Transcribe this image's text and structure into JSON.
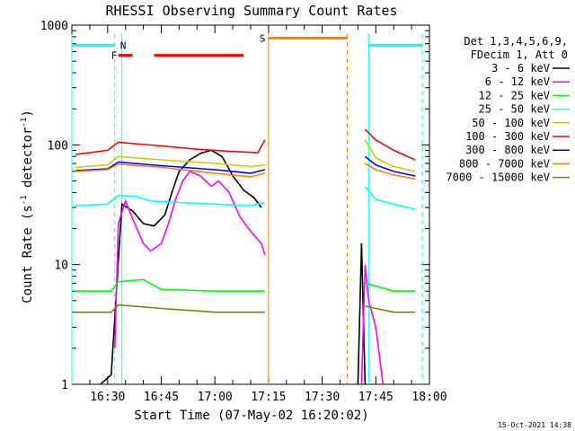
{
  "chart_data": {
    "type": "line",
    "title": "RHESSI Observing Summary Count Rates",
    "xlabel": "Start Time (07-May-02 16:20:02)",
    "ylabel_main": "Count Rate (s",
    "ylabel_sup1": "-1",
    "ylabel_mid": " detector",
    "ylabel_sup2": "-1",
    "ylabel_end": ")",
    "y_scale": "log",
    "xlim": [
      "16:20",
      "18:00"
    ],
    "ylim": [
      1,
      1000
    ],
    "x_ticks": [
      "16:30",
      "16:45",
      "17:00",
      "17:15",
      "17:30",
      "17:45",
      "18:00"
    ],
    "y_ticks": [
      "1",
      "10",
      "100",
      "1000"
    ],
    "legend_header": [
      "Det 1,3,4,5,6,9,",
      "FDecim 1, Att 0"
    ],
    "legend_position": "right",
    "series": [
      {
        "name": "3 - 6 keV",
        "color": "#000000",
        "points": [
          [
            "16:28",
            1
          ],
          [
            "16:31",
            1.2
          ],
          [
            "16:34",
            32
          ],
          [
            "16:37",
            28
          ],
          [
            "16:40",
            22
          ],
          [
            "16:43",
            21
          ],
          [
            "16:46",
            26
          ],
          [
            "16:48",
            40
          ],
          [
            "16:50",
            60
          ],
          [
            "16:53",
            75
          ],
          [
            "16:56",
            85
          ],
          [
            "16:59",
            90
          ],
          [
            "17:02",
            80
          ],
          [
            "17:05",
            55
          ],
          [
            "17:08",
            42
          ],
          [
            "17:11",
            36
          ],
          [
            "17:13",
            30
          ]
        ]
      },
      {
        "name": "6 - 12 keV",
        "color": "#ff00ff",
        "points": [
          [
            "16:32",
            2
          ],
          [
            "16:33",
            22
          ],
          [
            "16:35",
            34
          ],
          [
            "16:37",
            24
          ],
          [
            "16:40",
            15
          ],
          [
            "16:42",
            13
          ],
          [
            "16:45",
            15
          ],
          [
            "16:47",
            22
          ],
          [
            "16:49",
            35
          ],
          [
            "16:51",
            50
          ],
          [
            "16:53",
            60
          ],
          [
            "16:56",
            55
          ],
          [
            "16:59",
            45
          ],
          [
            "17:01",
            50
          ],
          [
            "17:04",
            40
          ],
          [
            "17:07",
            25
          ],
          [
            "17:10",
            19
          ],
          [
            "17:13",
            15
          ],
          [
            "17:14",
            12
          ]
        ]
      },
      {
        "name": "12 - 25 keV",
        "color": "#00ff00",
        "points": [
          [
            "16:21",
            6
          ],
          [
            "16:31",
            6
          ],
          [
            "16:33",
            7.2
          ],
          [
            "16:40",
            7.5
          ],
          [
            "16:45",
            6.2
          ],
          [
            "17:00",
            6
          ],
          [
            "17:14",
            6
          ]
        ]
      },
      {
        "name": "25 - 50 keV",
        "color": "#00ffff",
        "points": [
          [
            "16:21",
            31
          ],
          [
            "16:30",
            32
          ],
          [
            "16:33",
            38
          ],
          [
            "16:38",
            37
          ],
          [
            "16:42",
            34
          ],
          [
            "16:50",
            33
          ],
          [
            "17:00",
            32
          ],
          [
            "17:10",
            31
          ],
          [
            "17:14",
            33
          ]
        ]
      },
      {
        "name": "50 - 100 keV",
        "color": "#cccc00",
        "points": [
          [
            "16:21",
            65
          ],
          [
            "16:30",
            68
          ],
          [
            "16:33",
            80
          ],
          [
            "16:45",
            75
          ],
          [
            "17:00",
            70
          ],
          [
            "17:10",
            66
          ],
          [
            "17:14",
            68
          ]
        ]
      },
      {
        "name": "100 - 300 keV",
        "color": "#ff0000",
        "points": [
          [
            "16:21",
            83
          ],
          [
            "16:30",
            90
          ],
          [
            "16:33",
            105
          ],
          [
            "16:45",
            98
          ],
          [
            "16:55",
            92
          ],
          [
            "17:05",
            88
          ],
          [
            "17:12",
            86
          ],
          [
            "17:14",
            110
          ]
        ]
      },
      {
        "name": "300 - 800 keV",
        "color": "#0000ff",
        "points": [
          [
            "16:21",
            61
          ],
          [
            "16:30",
            63
          ],
          [
            "16:33",
            72
          ],
          [
            "16:45",
            67
          ],
          [
            "17:00",
            62
          ],
          [
            "17:10",
            58
          ],
          [
            "17:14",
            62
          ]
        ]
      },
      {
        "name": "800 - 7000 keV",
        "color": "#ff8000",
        "points": [
          [
            "16:21",
            60
          ],
          [
            "16:30",
            62
          ],
          [
            "16:33",
            69
          ],
          [
            "16:45",
            65
          ],
          [
            "17:00",
            58
          ],
          [
            "17:10",
            54
          ],
          [
            "17:14",
            58
          ]
        ]
      },
      {
        "name": "7000 - 15000 keV",
        "color": "#808000",
        "points": [
          [
            "16:21",
            4
          ],
          [
            "16:31",
            4
          ],
          [
            "16:33",
            4.6
          ],
          [
            "16:45",
            4.3
          ],
          [
            "17:00",
            4
          ],
          [
            "17:14",
            4
          ]
        ]
      }
    ],
    "post_gap_series": [
      {
        "name": "3 - 6 keV",
        "color": "#000000",
        "points": [
          [
            "17:40",
            1
          ],
          [
            "17:41",
            15
          ],
          [
            "17:42",
            1
          ]
        ]
      },
      {
        "name": "6 - 12 keV",
        "color": "#ff00ff",
        "points": [
          [
            "17:41",
            1
          ],
          [
            "17:42",
            10
          ],
          [
            "17:43",
            5
          ],
          [
            "17:45",
            3
          ],
          [
            "17:47",
            1
          ]
        ]
      },
      {
        "name": "12 - 25 keV",
        "color": "#00ff00",
        "points": [
          [
            "17:42",
            7
          ],
          [
            "17:50",
            6
          ],
          [
            "17:56",
            6
          ]
        ]
      },
      {
        "name": "25 - 50 keV",
        "color": "#00ffff",
        "points": [
          [
            "17:42",
            45
          ],
          [
            "17:45",
            35
          ],
          [
            "17:50",
            32
          ],
          [
            "17:56",
            29
          ]
        ]
      },
      {
        "name": "50 - 100 keV",
        "color": "#cccc00",
        "points": [
          [
            "17:42",
            110
          ],
          [
            "17:45",
            78
          ],
          [
            "17:50",
            66
          ],
          [
            "17:56",
            60
          ]
        ]
      },
      {
        "name": "100 - 300 keV",
        "color": "#ff0000",
        "points": [
          [
            "17:42",
            135
          ],
          [
            "17:45",
            110
          ],
          [
            "17:50",
            90
          ],
          [
            "17:56",
            75
          ]
        ]
      },
      {
        "name": "300 - 800 keV",
        "color": "#0000ff",
        "points": [
          [
            "17:42",
            80
          ],
          [
            "17:45",
            68
          ],
          [
            "17:50",
            60
          ],
          [
            "17:56",
            55
          ]
        ]
      },
      {
        "name": "800 - 7000 keV",
        "color": "#ff8000",
        "points": [
          [
            "17:42",
            70
          ],
          [
            "17:45",
            62
          ],
          [
            "17:50",
            56
          ],
          [
            "17:56",
            52
          ]
        ]
      },
      {
        "name": "7000 - 15000 keV",
        "color": "#808000",
        "points": [
          [
            "17:42",
            4.5
          ],
          [
            "17:50",
            4
          ],
          [
            "17:56",
            4
          ]
        ]
      }
    ],
    "annotations": [
      {
        "label": "N",
        "color": "#00ffff",
        "bars": [
          [
            "16:20",
            "16:32"
          ],
          [
            "17:43",
            "17:58"
          ]
        ],
        "y": 680
      },
      {
        "label": "F",
        "color": "#ff0000",
        "bars": [
          [
            "16:33",
            "16:37"
          ],
          [
            "16:43",
            "17:08"
          ]
        ],
        "y": 560
      },
      {
        "label": "S",
        "color": "#ff8000",
        "bars": [
          [
            "17:15",
            "17:37"
          ]
        ],
        "y": 780
      }
    ],
    "vertical_lines": [
      {
        "color": "#00ffff",
        "style": "dash",
        "x": "16:32"
      },
      {
        "color": "#00ffff",
        "style": "solid",
        "x": "16:34"
      },
      {
        "color": "#ff8000",
        "style": "solid",
        "x": "17:15"
      },
      {
        "color": "#ff8000",
        "style": "dash",
        "x": "17:37"
      },
      {
        "color": "#00ffff",
        "style": "solid",
        "x": "17:43"
      },
      {
        "color": "#00ffff",
        "style": "dash",
        "x": "17:58"
      },
      {
        "color": "#00ffff",
        "style": "solid",
        "x": "16:20"
      }
    ]
  },
  "footer": {
    "timestamp": "15-Oct-2021 14:38"
  }
}
